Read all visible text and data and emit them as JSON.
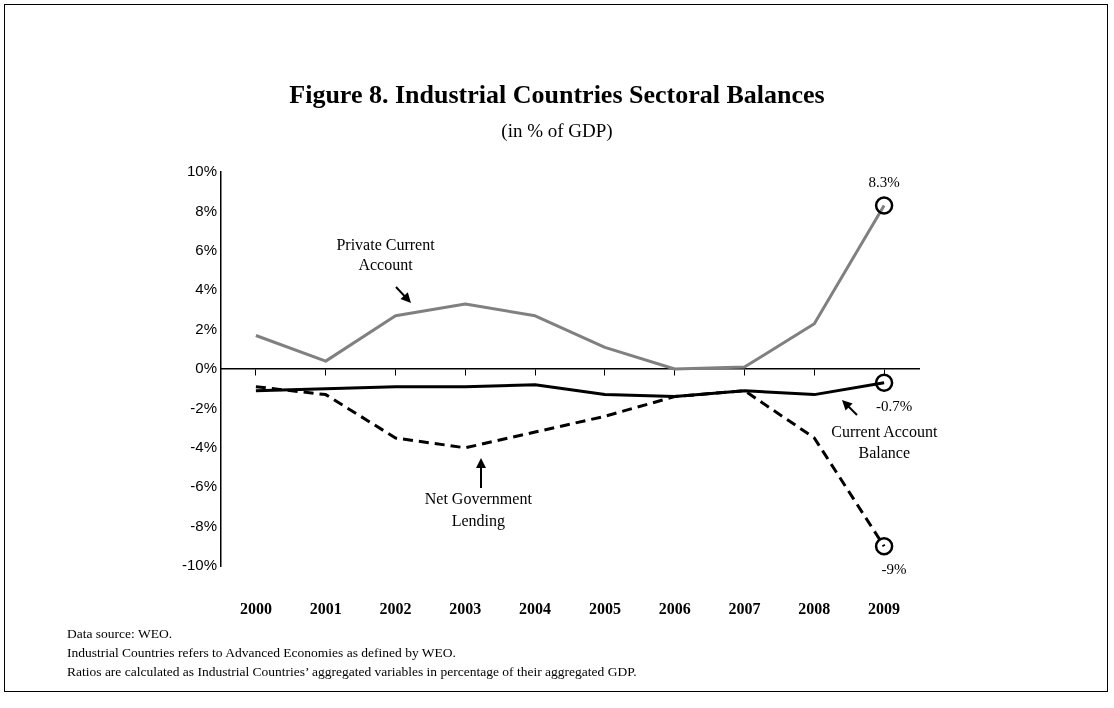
{
  "chart_data": {
    "type": "line",
    "title": "Figure 8. Industrial Countries Sectoral Balances",
    "subtitle": "(in % of GDP)",
    "categories": [
      "2000",
      "2001",
      "2002",
      "2003",
      "2004",
      "2005",
      "2006",
      "2007",
      "2008",
      "2009"
    ],
    "series": [
      {
        "color": "#808080",
        "line_style": "solid",
        "values": [
          1.7,
          0.4,
          2.7,
          3.3,
          2.7,
          1.1,
          0.0,
          0.1,
          2.3,
          8.3
        ],
        "value_labels": [
          null,
          null,
          null,
          null,
          null,
          null,
          null,
          null,
          null,
          "8.3%"
        ]
      },
      {
        "color": "#000000",
        "line_style": "solid",
        "values": [
          -1.1,
          -1.0,
          -0.9,
          -0.9,
          -0.8,
          -1.3,
          -1.4,
          -1.1,
          -1.3,
          -0.7
        ],
        "value_labels": [
          null,
          null,
          null,
          null,
          null,
          null,
          null,
          null,
          null,
          "-0.7%"
        ]
      },
      {
        "color": "#000000",
        "line_style": "dashed",
        "values": [
          -0.9,
          -1.3,
          -3.5,
          -4.0,
          -3.2,
          -2.4,
          -1.4,
          -1.1,
          -3.5,
          -9.0
        ],
        "value_labels": [
          null,
          null,
          null,
          null,
          null,
          null,
          null,
          null,
          null,
          "-9%"
        ]
      }
    ],
    "ylim": [
      -10,
      10
    ],
    "yticks": [
      {
        "value": -10,
        "label": "-10%"
      },
      {
        "value": -8,
        "label": "-8%"
      },
      {
        "value": -6,
        "label": "-6%"
      },
      {
        "value": -4,
        "label": "-4%"
      },
      {
        "value": -2,
        "label": "-2%"
      },
      {
        "value": 0,
        "label": "0%"
      },
      {
        "value": 2,
        "label": "2%"
      },
      {
        "value": 4,
        "label": "4%"
      },
      {
        "value": 6,
        "label": "6%"
      },
      {
        "value": 8,
        "label": "8%"
      },
      {
        "value": 10,
        "label": "10%"
      }
    ],
    "annotations": [
      {
        "text": "Private Current Account",
        "x": "2002",
        "y": 2.7
      },
      {
        "text": "Current Account Balance",
        "x": "2008",
        "y": -1.3
      },
      {
        "text": "Net Government Lending",
        "x": "2003",
        "y": -4.0
      },
      "Data source: WEO.",
      "Industrial Countries refers to Advanced Economies as defined by WEO.",
      "Ratios are calculated as Industrial Countries’ aggregated variables in percentage of their aggregated GDP."
    ]
  }
}
